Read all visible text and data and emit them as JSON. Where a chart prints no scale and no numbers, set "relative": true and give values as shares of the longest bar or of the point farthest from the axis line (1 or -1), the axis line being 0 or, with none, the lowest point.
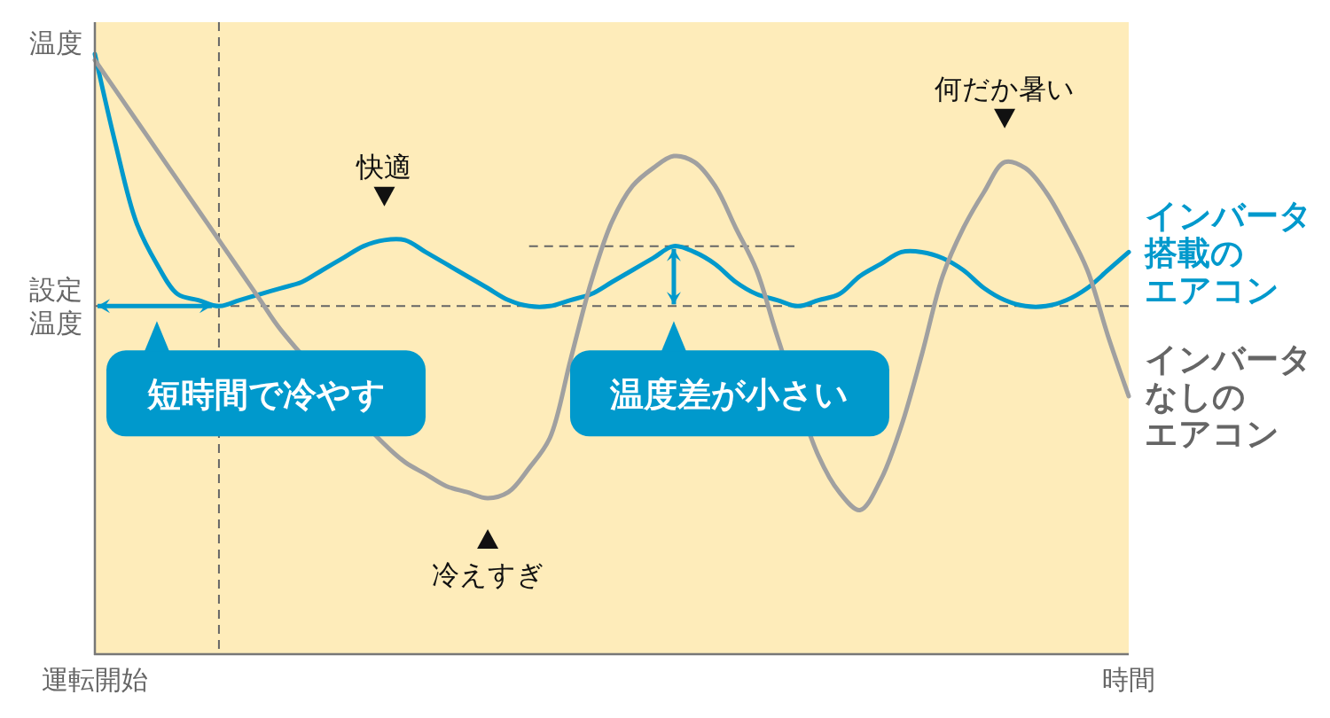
{
  "chart_data": {
    "type": "line",
    "relative": true,
    "ylabel": "温度",
    "categories": [
      "運転開始",
      null,
      null,
      null,
      null,
      null,
      null,
      null,
      null,
      null,
      null,
      null,
      null,
      null,
      null,
      null,
      null,
      null,
      null,
      null,
      null,
      null,
      null,
      null,
      null,
      null,
      null,
      null,
      null,
      null,
      null,
      null,
      null,
      null,
      null,
      null,
      null,
      null,
      null,
      null,
      null,
      null,
      null,
      null,
      null,
      null,
      null,
      null,
      null,
      null,
      "時間"
    ],
    "series": [
      {
        "type": "line",
        "color": "#666666",
        "line_style": "dashed",
        "values": [
          null,
          null,
          null,
          null,
          null,
          null,
          null,
          null,
          null,
          null,
          null,
          null,
          null,
          null,
          null,
          null,
          null,
          null,
          null,
          null,
          null,
          0.68,
          0.68,
          0.68,
          0.68,
          0.68,
          0.68,
          0.68,
          0.68,
          0.68,
          0.68,
          0.68,
          0.68,
          0.68,
          0.68,
          null,
          null,
          null,
          null,
          null,
          null,
          null,
          null,
          null,
          null,
          null,
          null,
          null,
          null,
          null,
          null
        ]
      },
      {
        "name": "インバータ搭載のエアコン",
        "color": "#0099cc",
        "values": [
          1,
          0.85,
          0.72,
          0.65,
          0.6,
          0.59,
          0.58,
          0.59,
          0.6,
          0.61,
          0.62,
          0.64,
          0.66,
          0.68,
          0.69,
          0.69,
          0.67,
          0.65,
          0.63,
          0.61,
          0.59,
          0.58,
          0.58,
          0.59,
          0.6,
          0.62,
          0.64,
          0.66,
          0.68,
          0.67,
          0.65,
          0.62,
          0.6,
          0.59,
          0.58,
          0.59,
          0.6,
          0.63,
          0.65,
          0.67,
          0.67,
          0.66,
          0.64,
          0.61,
          0.59,
          0.58,
          0.58,
          0.59,
          0.61,
          0.64,
          0.67
        ]
      },
      {
        "name": "インバータなしのエアコン",
        "color": "#a0a0a0",
        "values": [
          0.99,
          0.94,
          0.89,
          0.84,
          0.79,
          0.74,
          0.69,
          0.64,
          0.59,
          0.54,
          null,
          null,
          null,
          null,
          0.35,
          0.32,
          0.3,
          0.28,
          0.27,
          0.26,
          0.27,
          0.31,
          0.36,
          0.49,
          0.62,
          0.72,
          0.78,
          0.81,
          0.83,
          0.82,
          0.78,
          0.71,
          0.64,
          0.53,
          null,
          0.33,
          0.27,
          0.24,
          0.29,
          0.38,
          0.5,
          0.63,
          0.71,
          0.77,
          0.82,
          0.81,
          0.77,
          0.71,
          0.64,
          0.53,
          0.43
        ]
      }
    ],
    "ref_lines": [
      {
        "axis": "y",
        "value": 0.58,
        "label": "設定温度",
        "color": "#666666",
        "line_style": "dashed"
      }
    ],
    "annotations": [
      {
        "text": "短時間で冷やす",
        "y": 0.58
      },
      {
        "text": "快適",
        "y": 0.69
      },
      {
        "text": "冷えすぎ",
        "y": 0.26
      },
      {
        "text": "温度差が小さい",
        "y": 0.58
      },
      {
        "text": "何だか暑い",
        "y": 0.82
      }
    ]
  }
}
